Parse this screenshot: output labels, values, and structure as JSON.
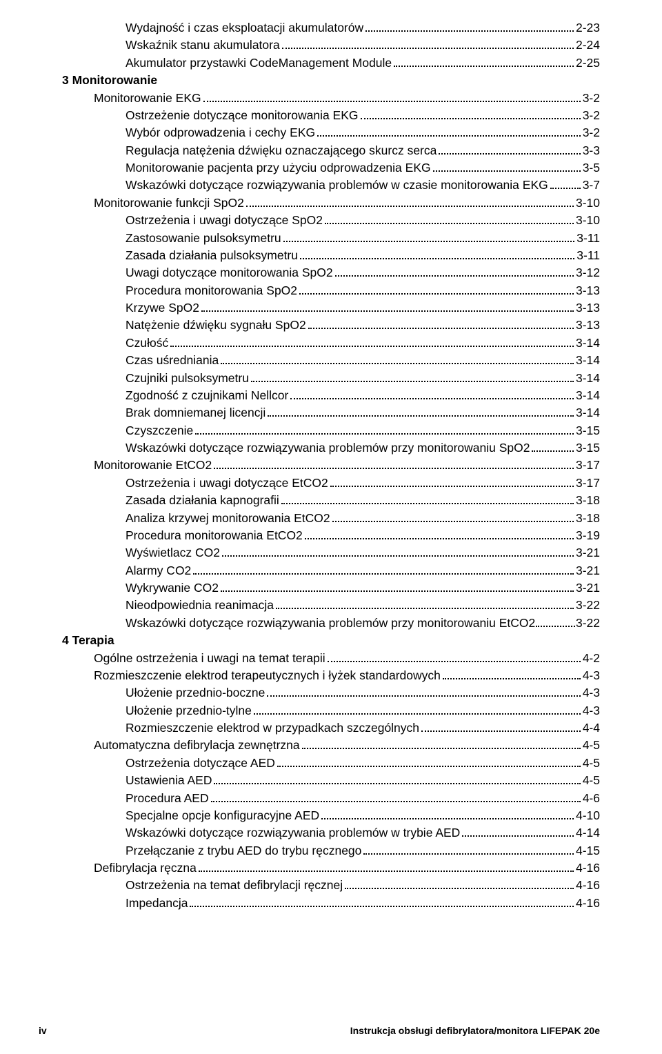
{
  "toc": [
    {
      "level": 3,
      "label": "Wydajność i czas eksploatacji akumulatorów",
      "page": "2-23"
    },
    {
      "level": 3,
      "label": "Wskaźnik stanu akumulatora",
      "page": "2-24"
    },
    {
      "level": 3,
      "label": "Akumulator przystawki CodeManagement Module",
      "page": "2-25"
    },
    {
      "level": 1,
      "label": "3 Monitorowanie",
      "page": null
    },
    {
      "level": 2,
      "label": "Monitorowanie EKG",
      "page": "3-2"
    },
    {
      "level": 3,
      "label": "Ostrzeżenie dotyczące monitorowania EKG",
      "page": "3-2"
    },
    {
      "level": 3,
      "label": "Wybór odprowadzenia i cechy EKG",
      "page": "3-2"
    },
    {
      "level": 3,
      "label": "Regulacja natężenia dźwięku oznaczającego skurcz serca",
      "page": "3-3"
    },
    {
      "level": 3,
      "label": "Monitorowanie pacjenta przy użyciu odprowadzenia EKG",
      "page": "3-5"
    },
    {
      "level": 3,
      "label": "Wskazówki dotyczące rozwiązywania problemów w czasie monitorowania EKG",
      "page": "3-7"
    },
    {
      "level": 2,
      "label": "Monitorowanie funkcji SpO2",
      "page": "3-10"
    },
    {
      "level": 3,
      "label": "Ostrzeżenia i uwagi dotyczące SpO2",
      "page": "3-10"
    },
    {
      "level": 3,
      "label": "Zastosowanie pulsoksymetru",
      "page": "3-11"
    },
    {
      "level": 3,
      "label": "Zasada działania pulsoksymetru",
      "page": "3-11"
    },
    {
      "level": 3,
      "label": "Uwagi dotyczące monitorowania SpO2",
      "page": "3-12"
    },
    {
      "level": 3,
      "label": "Procedura monitorowania SpO2",
      "page": "3-13"
    },
    {
      "level": 3,
      "label": "Krzywe SpO2",
      "page": "3-13"
    },
    {
      "level": 3,
      "label": "Natężenie dźwięku sygnału SpO2",
      "page": "3-13"
    },
    {
      "level": 3,
      "label": "Czułość",
      "page": "3-14"
    },
    {
      "level": 3,
      "label": "Czas uśredniania",
      "page": "3-14"
    },
    {
      "level": 3,
      "label": "Czujniki pulsoksymetru",
      "page": "3-14"
    },
    {
      "level": 3,
      "label": "Zgodność z czujnikami Nellcor",
      "page": "3-14"
    },
    {
      "level": 3,
      "label": "Brak domniemanej licencji",
      "page": "3-14"
    },
    {
      "level": 3,
      "label": "Czyszczenie",
      "page": "3-15"
    },
    {
      "level": 3,
      "label": "Wskazówki dotyczące rozwiązywania problemów przy monitorowaniu SpO2",
      "page": "3-15"
    },
    {
      "level": 2,
      "label": "Monitorowanie EtCO2",
      "page": "3-17"
    },
    {
      "level": 3,
      "label": "Ostrzeżenia i uwagi dotyczące EtCO2",
      "page": "3-17"
    },
    {
      "level": 3,
      "label": "Zasada działania kapnografii",
      "page": "3-18"
    },
    {
      "level": 3,
      "label": "Analiza krzywej monitorowania EtCO2",
      "page": "3-18"
    },
    {
      "level": 3,
      "label": "Procedura monitorowania EtCO2",
      "page": "3-19"
    },
    {
      "level": 3,
      "label": "Wyświetlacz CO2",
      "page": "3-21"
    },
    {
      "level": 3,
      "label": "Alarmy CO2",
      "page": "3-21"
    },
    {
      "level": 3,
      "label": "Wykrywanie CO2",
      "page": "3-21"
    },
    {
      "level": 3,
      "label": "Nieodpowiednia reanimacja",
      "page": "3-22"
    },
    {
      "level": 3,
      "label": "Wskazówki dotyczące rozwiązywania problemów przy monitorowaniu EtCO2",
      "page": "3-22",
      "tightDots": true
    },
    {
      "level": 1,
      "label": "4 Terapia",
      "page": null
    },
    {
      "level": 2,
      "label": "Ogólne ostrzeżenia i uwagi na temat terapii",
      "page": "4-2"
    },
    {
      "level": 2,
      "label": "Rozmieszczenie elektrod terapeutycznych i łyżek standardowych",
      "page": "4-3"
    },
    {
      "level": 3,
      "label": "Ułożenie przednio-boczne",
      "page": "4-3"
    },
    {
      "level": 3,
      "label": "Ułożenie przednio-tylne",
      "page": "4-3"
    },
    {
      "level": 3,
      "label": "Rozmieszczenie elektrod w przypadkach szczególnych",
      "page": "4-4"
    },
    {
      "level": 2,
      "label": "Automatyczna defibrylacja zewnętrzna",
      "page": "4-5"
    },
    {
      "level": 3,
      "label": "Ostrzeżenia dotyczące AED",
      "page": "4-5"
    },
    {
      "level": 3,
      "label": "Ustawienia AED",
      "page": "4-5"
    },
    {
      "level": 3,
      "label": "Procedura AED",
      "page": "4-6"
    },
    {
      "level": 3,
      "label": "Specjalne opcje konfiguracyjne AED",
      "page": "4-10"
    },
    {
      "level": 3,
      "label": "Wskazówki dotyczące rozwiązywania problemów w trybie AED",
      "page": "4-14"
    },
    {
      "level": 3,
      "label": "Przełączanie z trybu AED do trybu ręcznego",
      "page": "4-15"
    },
    {
      "level": 2,
      "label": "Defibrylacja ręczna",
      "page": "4-16"
    },
    {
      "level": 3,
      "label": "Ostrzeżenia na temat defibrylacji ręcznej",
      "page": "4-16"
    },
    {
      "level": 3,
      "label": "Impedancja",
      "page": "4-16"
    }
  ],
  "footer": {
    "pageNum": "iv",
    "title": "Instrukcja obsługi defibrylatora/monitora LIFEPAK 20e"
  }
}
